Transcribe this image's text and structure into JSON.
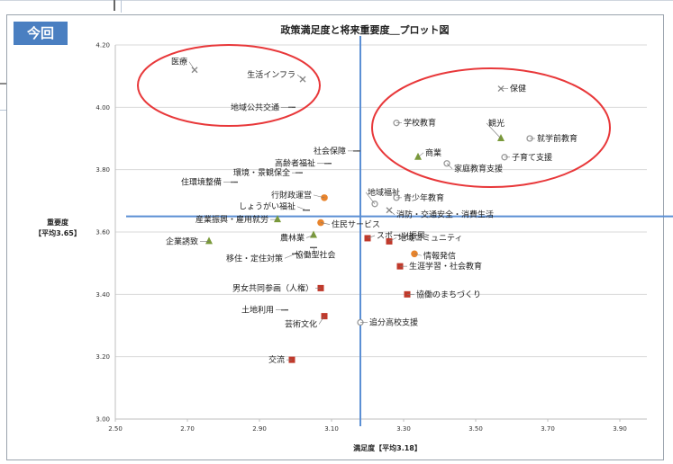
{
  "badge": "今回",
  "chart_data": {
    "type": "scatter",
    "title": "政策満足度と将来重要度＿プロット図",
    "xlabel": "満足度【平均3.18】",
    "ylabel": [
      "重要度",
      "【平均3.65】"
    ],
    "xlim": [
      2.5,
      4.0
    ],
    "ylim": [
      3.0,
      4.2
    ],
    "xticks": [
      "2.50",
      "2.70",
      "2.90",
      "3.10",
      "3.30",
      "3.50",
      "3.70",
      "3.90"
    ],
    "yticks": [
      "3.00",
      "3.20",
      "3.40",
      "3.60",
      "3.80",
      "4.00",
      "4.20"
    ],
    "grid": true,
    "mean_lines": {
      "x": 3.18,
      "y": 3.65
    },
    "marker_colors": {
      "x": "#888888",
      "circle": "#999999",
      "triangle": "#7a9a3a",
      "dot": "#e8842c",
      "square": "#c0392b",
      "dash": "#555555"
    },
    "points": [
      {
        "label": "医療",
        "x": 2.72,
        "y": 4.12,
        "marker": "x"
      },
      {
        "label": "生活インフラ",
        "x": 3.02,
        "y": 4.09,
        "marker": "x"
      },
      {
        "label": "地域公共交通",
        "x": 2.99,
        "y": 4.0,
        "marker": "dash"
      },
      {
        "label": "保健",
        "x": 3.57,
        "y": 4.06,
        "marker": "x"
      },
      {
        "label": "学校教育",
        "x": 3.28,
        "y": 3.95,
        "marker": "circle"
      },
      {
        "label": "観光",
        "x": 3.57,
        "y": 3.9,
        "marker": "triangle"
      },
      {
        "label": "就学前教育",
        "x": 3.65,
        "y": 3.9,
        "marker": "circle"
      },
      {
        "label": "社会保障",
        "x": 3.17,
        "y": 3.86,
        "marker": "dash"
      },
      {
        "label": "商業",
        "x": 3.34,
        "y": 3.84,
        "marker": "triangle"
      },
      {
        "label": "子育て支援",
        "x": 3.58,
        "y": 3.84,
        "marker": "circle"
      },
      {
        "label": "高齢者福祉",
        "x": 3.09,
        "y": 3.82,
        "marker": "dash"
      },
      {
        "label": "家庭教育支援",
        "x": 3.42,
        "y": 3.82,
        "marker": "circle"
      },
      {
        "label": "環境・景観保全",
        "x": 3.01,
        "y": 3.79,
        "marker": "dash"
      },
      {
        "label": "住環境整備",
        "x": 2.83,
        "y": 3.76,
        "marker": "dash"
      },
      {
        "label": "行財政運営",
        "x": 3.08,
        "y": 3.71,
        "marker": "dot"
      },
      {
        "label": "地域福祉",
        "x": 3.22,
        "y": 3.69,
        "marker": "circle"
      },
      {
        "label": "青少年教育",
        "x": 3.28,
        "y": 3.71,
        "marker": "circle"
      },
      {
        "label": "しょうがい福祉",
        "x": 3.03,
        "y": 3.67,
        "marker": "dash"
      },
      {
        "label": "消防・交通安全・消費生活",
        "x": 3.26,
        "y": 3.67,
        "marker": "x"
      },
      {
        "label": "産業振興・雇用就労",
        "x": 2.95,
        "y": 3.64,
        "marker": "triangle"
      },
      {
        "label": "住民サービス",
        "x": 3.07,
        "y": 3.63,
        "marker": "dot"
      },
      {
        "label": "農林業",
        "x": 3.05,
        "y": 3.59,
        "marker": "triangle"
      },
      {
        "label": "スポーツ振興",
        "x": 3.2,
        "y": 3.58,
        "marker": "square"
      },
      {
        "label": "協働型社会",
        "x": 3.05,
        "y": 3.55,
        "marker": "dash"
      },
      {
        "label": "企業誘致",
        "x": 2.76,
        "y": 3.57,
        "marker": "triangle"
      },
      {
        "label": "地域コミュニティ",
        "x": 3.26,
        "y": 3.57,
        "marker": "square"
      },
      {
        "label": "移住・定住対策",
        "x": 3.0,
        "y": 3.53,
        "marker": "dash"
      },
      {
        "label": "情報発信",
        "x": 3.33,
        "y": 3.53,
        "marker": "dot"
      },
      {
        "label": "生涯学習・社会教育",
        "x": 3.29,
        "y": 3.49,
        "marker": "square"
      },
      {
        "label": "男女共同参画（人権）",
        "x": 3.07,
        "y": 3.42,
        "marker": "square"
      },
      {
        "label": "協働のまちづくり",
        "x": 3.31,
        "y": 3.4,
        "marker": "square"
      },
      {
        "label": "土地利用",
        "x": 2.97,
        "y": 3.35,
        "marker": "dash"
      },
      {
        "label": "芸術文化",
        "x": 3.08,
        "y": 3.33,
        "marker": "square"
      },
      {
        "label": "追分高校支援",
        "x": 3.18,
        "y": 3.31,
        "marker": "circle"
      },
      {
        "label": "交流",
        "x": 2.99,
        "y": 3.19,
        "marker": "square"
      }
    ]
  }
}
